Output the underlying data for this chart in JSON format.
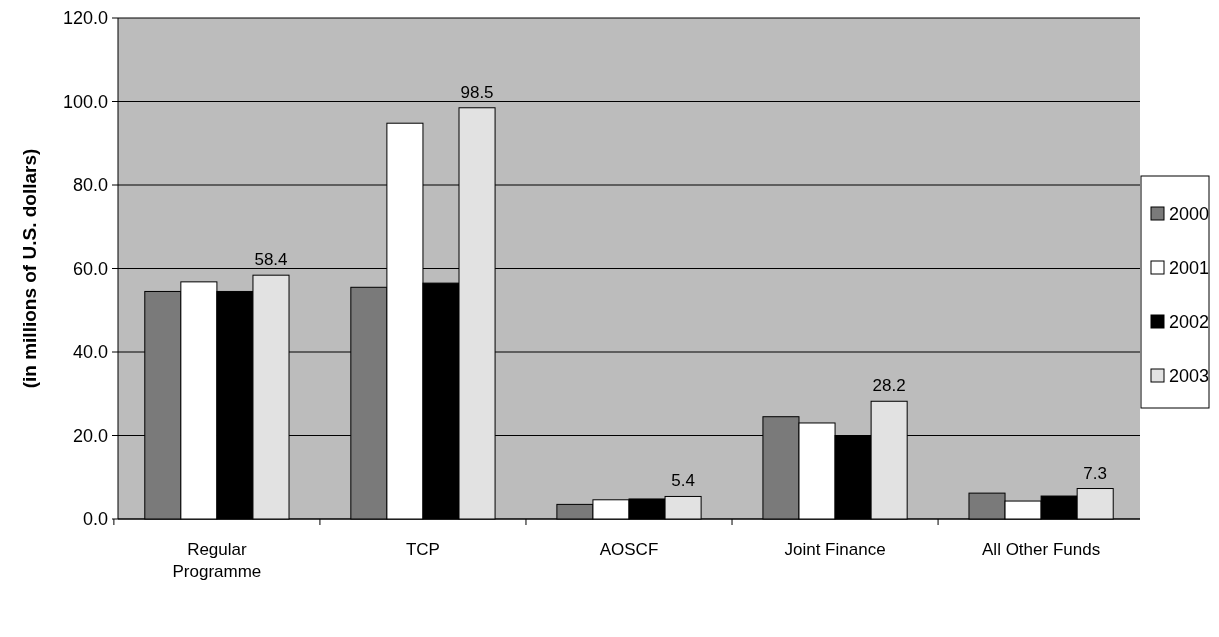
{
  "chart_data": {
    "type": "bar",
    "ylabel": "(in millions of U.S. dollars)",
    "categories": [
      "Regular Programme",
      "TCP",
      "AOSCF",
      "Joint Finance",
      "All Other Funds"
    ],
    "series": [
      {
        "name": "2000",
        "color": "#7a7a7a",
        "values": [
          54.5,
          55.5,
          3.5,
          24.5,
          6.2
        ]
      },
      {
        "name": "2001",
        "color": "#ffffff",
        "values": [
          56.8,
          94.8,
          4.6,
          23.0,
          4.3
        ]
      },
      {
        "name": "2002",
        "color": "#000000",
        "values": [
          54.5,
          56.5,
          4.8,
          20.0,
          5.5
        ]
      },
      {
        "name": "2003",
        "color": "#e2e2e2",
        "values": [
          58.4,
          98.5,
          5.4,
          28.2,
          7.3
        ],
        "value_labels": [
          "58.4",
          "98.5",
          "5.4",
          "28.2",
          "7.3"
        ]
      }
    ],
    "ylim": [
      0,
      120
    ],
    "yticks": [
      {
        "value": 0,
        "label": "0.0"
      },
      {
        "value": 20,
        "label": "20.0"
      },
      {
        "value": 40,
        "label": "40.0"
      },
      {
        "value": 60,
        "label": "60.0"
      },
      {
        "value": 80,
        "label": "80.0"
      },
      {
        "value": 100,
        "label": "100.0"
      },
      {
        "value": 120,
        "label": "120.0"
      }
    ],
    "grid": "y",
    "legend": "right"
  }
}
